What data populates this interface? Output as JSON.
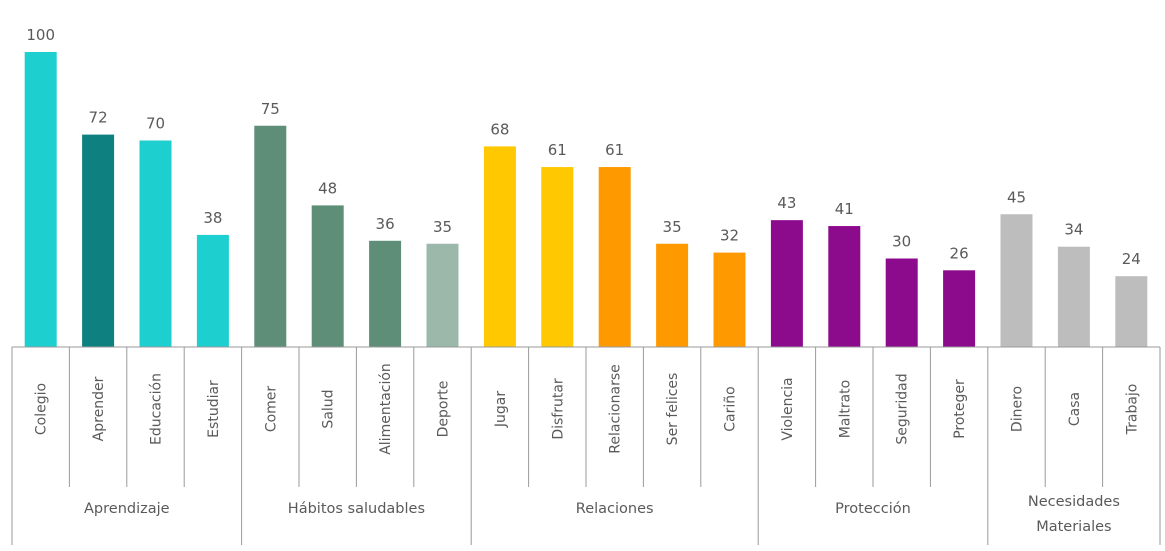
{
  "chart_data": {
    "type": "bar",
    "ylim": [
      0,
      100
    ],
    "grid": false,
    "categories": [
      "Colegio",
      "Aprender",
      "Educación",
      "Estudiar",
      "Comer",
      "Salud",
      "Alimentación",
      "Deporte",
      "Jugar",
      "Disfrutar",
      "Relacionarse",
      "Ser felices",
      "Cariño",
      "Violencia",
      "Maltrato",
      "Seguridad",
      "Proteger",
      "Dinero",
      "Casa",
      "Trabajo"
    ],
    "values": [
      100,
      72,
      70,
      38,
      75,
      48,
      36,
      35,
      68,
      61,
      61,
      35,
      32,
      43,
      41,
      30,
      26,
      45,
      34,
      24
    ],
    "bar_colors": [
      "#1ecfcf",
      "#0f8080",
      "#1ecfcf",
      "#1ecfcf",
      "#5e8e78",
      "#5e8e78",
      "#5e8e78",
      "#9bb8ab",
      "#ffc800",
      "#ffc800",
      "#ff9900",
      "#ff9900",
      "#ff9900",
      "#8c0a8c",
      "#8c0a8c",
      "#8c0a8c",
      "#8c0a8c",
      "#bdbdbd",
      "#bdbdbd",
      "#bdbdbd"
    ],
    "groups": [
      {
        "label": "Aprendizaje",
        "lines": [
          "Aprendizaje"
        ],
        "start": 0,
        "end": 3
      },
      {
        "label": "Hábitos saludables",
        "lines": [
          "Hábitos saludables"
        ],
        "start": 4,
        "end": 7
      },
      {
        "label": "Relaciones",
        "lines": [
          "Relaciones"
        ],
        "start": 8,
        "end": 12
      },
      {
        "label": "Protección",
        "lines": [
          "Protección"
        ],
        "start": 13,
        "end": 16
      },
      {
        "label": "Necesidades Materiales",
        "lines": [
          "Necesidades",
          "Materiales"
        ],
        "start": 17,
        "end": 19
      }
    ]
  }
}
